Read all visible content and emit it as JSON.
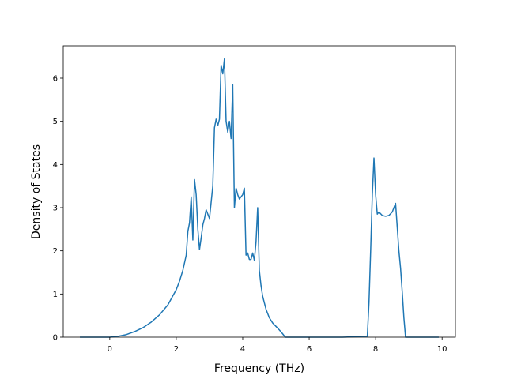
{
  "chart_data": {
    "type": "line",
    "title": "",
    "xlabel": "Frequency (THz)",
    "ylabel": "Density of States",
    "xlim": [
      -1.4,
      10.4
    ],
    "ylim": [
      0,
      6.75
    ],
    "xticks": [
      0,
      2,
      4,
      6,
      8,
      10
    ],
    "yticks": [
      0,
      1,
      2,
      3,
      4,
      5,
      6
    ],
    "xtick_labels": [
      "0",
      "2",
      "4",
      "6",
      "8",
      "10"
    ],
    "ytick_labels": [
      "0",
      "1",
      "2",
      "3",
      "4",
      "5",
      "6"
    ],
    "grid": false,
    "legend": "none",
    "colors": {
      "line": "#1f77b4"
    },
    "series": [
      {
        "x": [
          -0.9,
          -0.5,
          0.0,
          0.25,
          0.5,
          0.75,
          1.0,
          1.25,
          1.5,
          1.75,
          2.0,
          2.1,
          2.2,
          2.3,
          2.35,
          2.4,
          2.45,
          2.5,
          2.55,
          2.6,
          2.65,
          2.7,
          2.75,
          2.8,
          2.85,
          2.9,
          3.0,
          3.1,
          3.15,
          3.2,
          3.25,
          3.3,
          3.35,
          3.4,
          3.45,
          3.5,
          3.55,
          3.6,
          3.65,
          3.7,
          3.75,
          3.8,
          3.85,
          3.9,
          4.0,
          4.05,
          4.1,
          4.15,
          4.2,
          4.25,
          4.3,
          4.35,
          4.4,
          4.45,
          4.5,
          4.55,
          4.6,
          4.7,
          4.8,
          4.9,
          5.0,
          5.1,
          5.2,
          5.28,
          5.5,
          6.0,
          7.0,
          7.75,
          7.8,
          7.85,
          7.9,
          7.95,
          8.0,
          8.05,
          8.1,
          8.2,
          8.3,
          8.4,
          8.5,
          8.6,
          8.7,
          8.75,
          8.8,
          8.85,
          8.9,
          8.95,
          9.0,
          9.1,
          9.5,
          9.9
        ],
        "y": [
          0,
          0,
          0,
          0.02,
          0.06,
          0.13,
          0.22,
          0.35,
          0.52,
          0.75,
          1.1,
          1.3,
          1.55,
          1.9,
          2.45,
          2.65,
          3.25,
          2.25,
          3.65,
          3.3,
          2.5,
          2.03,
          2.3,
          2.6,
          2.75,
          2.95,
          2.75,
          3.5,
          4.85,
          5.05,
          4.9,
          5.05,
          6.3,
          6.1,
          6.45,
          5.0,
          4.75,
          5.0,
          4.6,
          5.85,
          3.0,
          3.45,
          3.3,
          3.2,
          3.3,
          3.45,
          1.9,
          1.95,
          1.8,
          1.8,
          1.95,
          1.78,
          2.2,
          3.0,
          1.55,
          1.2,
          0.95,
          0.65,
          0.45,
          0.33,
          0.25,
          0.17,
          0.08,
          0.0,
          0,
          0,
          0,
          0.02,
          0.8,
          2.0,
          3.3,
          4.15,
          3.3,
          2.85,
          2.9,
          2.82,
          2.8,
          2.82,
          2.9,
          3.1,
          2.0,
          1.6,
          1.05,
          0.45,
          0.0,
          0,
          0,
          0,
          0,
          0
        ]
      }
    ]
  }
}
